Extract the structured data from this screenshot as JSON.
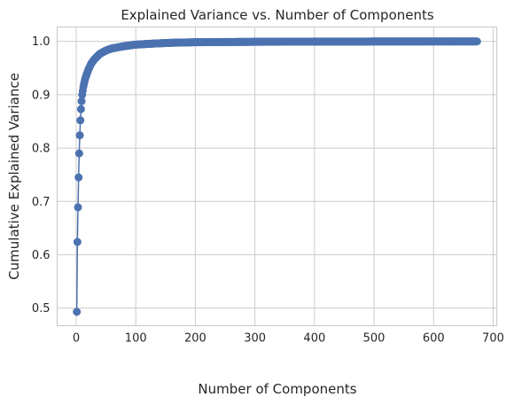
{
  "chart_data": {
    "type": "line",
    "title": "Explained Variance vs. Number of Components",
    "xlabel": "Number of Components",
    "ylabel": "Cumulative Explained Variance",
    "xlim": [
      -32,
      706
    ],
    "ylim": [
      0.467,
      1.027
    ],
    "xticks": [
      0,
      100,
      200,
      300,
      400,
      500,
      600,
      700
    ],
    "xtick_labels": [
      "0",
      "100",
      "200",
      "300",
      "400",
      "500",
      "600",
      "700"
    ],
    "yticks": [
      0.5,
      0.6,
      0.7,
      0.8,
      0.9,
      1.0
    ],
    "ytick_labels": [
      "0.5",
      "0.6",
      "0.7",
      "0.8",
      "0.9",
      "1.0"
    ],
    "grid": true,
    "series": [
      {
        "color": "#4c72b0",
        "marker": "circle",
        "n_points": 673,
        "key_points": [
          [
            1,
            0.493
          ],
          [
            2,
            0.624
          ],
          [
            3,
            0.689
          ],
          [
            4,
            0.745
          ],
          [
            5,
            0.79
          ],
          [
            6,
            0.824
          ],
          [
            7,
            0.852
          ],
          [
            8,
            0.873
          ],
          [
            9,
            0.888
          ],
          [
            10,
            0.9
          ],
          [
            12,
            0.915
          ],
          [
            15,
            0.93
          ],
          [
            20,
            0.946
          ],
          [
            25,
            0.958
          ],
          [
            30,
            0.966
          ],
          [
            40,
            0.977
          ],
          [
            50,
            0.983
          ],
          [
            60,
            0.987
          ],
          [
            80,
            0.991
          ],
          [
            100,
            0.994
          ],
          [
            130,
            0.996
          ],
          [
            160,
            0.9975
          ],
          [
            200,
            0.9985
          ],
          [
            300,
            0.9993
          ],
          [
            400,
            0.9997
          ],
          [
            500,
            0.9999
          ],
          [
            600,
            1.0
          ],
          [
            673,
            1.0
          ]
        ]
      }
    ]
  }
}
